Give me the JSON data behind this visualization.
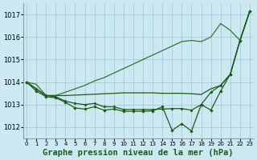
{
  "xlabel": "Graphe pression niveau de la mer (hPa)",
  "bg_color": "#cce8f0",
  "grid_color": "#aacfdf",
  "line_color_dark": "#1a5c1a",
  "line_color_med": "#2d7a2d",
  "ylim": [
    1011.5,
    1017.5
  ],
  "xlim": [
    -0.3,
    23.3
  ],
  "yticks": [
    1012,
    1013,
    1014,
    1015,
    1016,
    1017
  ],
  "xticks": [
    0,
    1,
    2,
    3,
    4,
    5,
    6,
    7,
    8,
    9,
    10,
    11,
    12,
    13,
    14,
    15,
    16,
    17,
    18,
    19,
    20,
    21,
    22,
    23
  ],
  "series": {
    "s1_smooth": [
      1014.0,
      1013.9,
      1013.4,
      1013.4,
      1013.55,
      1013.7,
      1013.85,
      1014.05,
      1014.2,
      1014.4,
      1014.6,
      1014.8,
      1015.0,
      1015.2,
      1015.4,
      1015.6,
      1015.8,
      1015.85,
      1015.8,
      1016.0,
      1016.6,
      1016.3,
      1015.85,
      1017.15
    ],
    "s2_flat": [
      1014.0,
      1013.7,
      1013.4,
      1013.4,
      1013.4,
      1013.42,
      1013.44,
      1013.46,
      1013.48,
      1013.5,
      1013.52,
      1013.52,
      1013.52,
      1013.52,
      1013.5,
      1013.5,
      1013.5,
      1013.48,
      1013.45,
      1013.7,
      1013.85,
      1014.35,
      1015.85,
      1017.15
    ],
    "s3_mid": [
      1014.0,
      1013.7,
      1013.4,
      1013.35,
      1013.15,
      1013.05,
      1013.0,
      1013.05,
      1012.9,
      1012.9,
      1012.78,
      1012.78,
      1012.78,
      1012.78,
      1012.8,
      1012.82,
      1012.82,
      1012.75,
      1013.0,
      1013.55,
      1013.85,
      1014.35,
      1015.85,
      1017.15
    ],
    "s4_jagged": [
      1014.0,
      1013.6,
      1013.35,
      1013.3,
      1013.1,
      1012.85,
      1012.8,
      1012.9,
      1012.75,
      1012.8,
      1012.7,
      1012.7,
      1012.7,
      1012.72,
      1012.9,
      1011.85,
      1012.15,
      1011.82,
      1013.0,
      1012.75,
      1013.6,
      1014.35,
      1015.85,
      1017.15
    ]
  },
  "tick_fontsize": 6,
  "xlabel_fontsize": 7.5
}
